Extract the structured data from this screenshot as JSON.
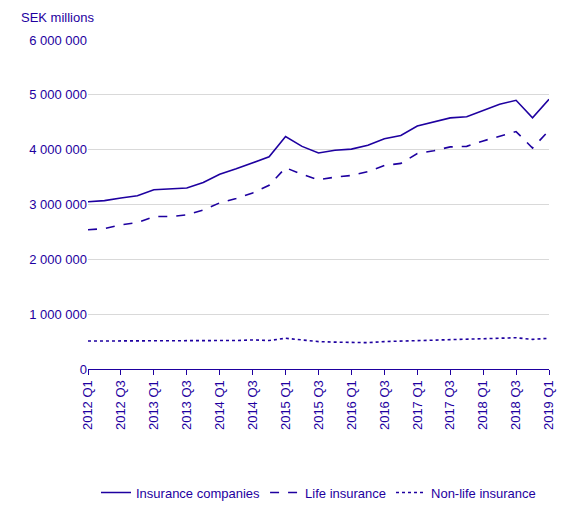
{
  "chart_data": {
    "type": "line",
    "ylabel": "SEK millions",
    "categories": [
      "2012 Q1",
      null,
      "2012 Q3",
      null,
      "2013 Q1",
      null,
      "2013 Q3",
      null,
      "2014 Q1",
      null,
      "2014 Q3",
      null,
      "2015 Q1",
      null,
      "2015 Q3",
      null,
      "2016 Q1",
      null,
      "2016 Q3",
      null,
      "2017 Q1",
      null,
      "2017 Q3",
      null,
      "2018 Q1",
      null,
      "2018 Q3",
      null,
      "2019 Q1"
    ],
    "series": [
      {
        "name": "Insurance companies",
        "color": "#1e00a0",
        "line_style": "solid",
        "values": [
          3050000,
          3070000,
          3120000,
          3160000,
          3270000,
          3290000,
          3300000,
          3400000,
          3550000,
          3650000,
          3760000,
          3870000,
          4240000,
          4060000,
          3940000,
          3990000,
          4010000,
          4080000,
          4200000,
          4260000,
          4430000,
          4500000,
          4580000,
          4600000,
          4720000,
          4830000,
          4900000,
          4580000,
          4920000
        ]
      },
      {
        "name": "Life insurance",
        "color": "#1e00a0",
        "line_style": "dash",
        "values": [
          2540000,
          2560000,
          2630000,
          2670000,
          2780000,
          2780000,
          2810000,
          2900000,
          3030000,
          3110000,
          3210000,
          3350000,
          3670000,
          3550000,
          3450000,
          3500000,
          3530000,
          3600000,
          3710000,
          3750000,
          3930000,
          3980000,
          4050000,
          4060000,
          4160000,
          4250000,
          4330000,
          4030000,
          4350000
        ]
      },
      {
        "name": "Non-life insurance",
        "color": "#1e00a0",
        "line_style": "dot",
        "values": [
          510000,
          510000,
          510000,
          510000,
          510000,
          510000,
          510000,
          510000,
          520000,
          520000,
          530000,
          520000,
          560000,
          530000,
          500000,
          490000,
          480000,
          480000,
          500000,
          510000,
          520000,
          520000,
          530000,
          550000,
          560000,
          570000,
          570000,
          540000,
          560000
        ]
      }
    ],
    "ylim": [
      0,
      6000000
    ],
    "yticks": [
      0,
      {
        "value": 1000000,
        "label": "1 000 000"
      },
      {
        "value": 2000000,
        "label": "2 000 000"
      },
      {
        "value": 3000000,
        "label": "3 000 000"
      },
      {
        "value": 4000000,
        "label": "4 000 000"
      },
      {
        "value": 5000000,
        "label": "5 000 000"
      },
      {
        "value": 6000000,
        "label": "6 000 000"
      }
    ],
    "grid": true,
    "legend": "bottom"
  }
}
